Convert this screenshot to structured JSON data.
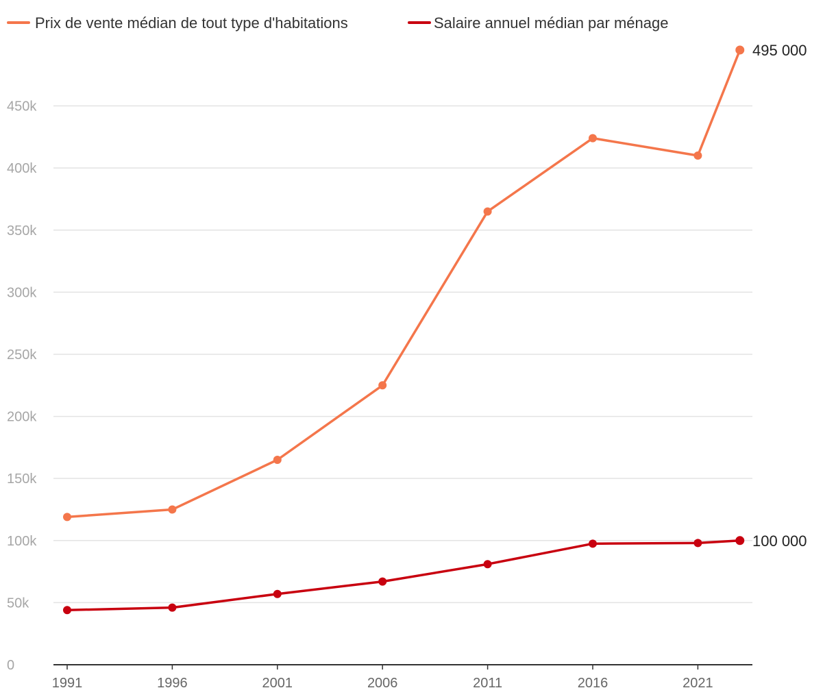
{
  "chart_data": {
    "type": "line",
    "title": "",
    "xlabel": "",
    "ylabel": "",
    "ylim": [
      0,
      495000
    ],
    "grid": true,
    "legend_position": "top-left",
    "x": [
      1991,
      1996,
      2001,
      2006,
      2011,
      2016,
      2021,
      2023
    ],
    "x_tick_labels": [
      "1991",
      "1996",
      "2001",
      "2006",
      "2011",
      "2016",
      "2021"
    ],
    "y_tick_labels": [
      "0",
      "50k",
      "100k",
      "150k",
      "200k",
      "250k",
      "300k",
      "350k",
      "400k",
      "450k"
    ],
    "y_tick_values": [
      0,
      50000,
      100000,
      150000,
      200000,
      250000,
      300000,
      350000,
      400000,
      450000
    ],
    "series": [
      {
        "name": "Prix de vente médian de tout type d'habitations",
        "color": "#f4764b",
        "values": [
          119000,
          125000,
          165000,
          225000,
          365000,
          424000,
          410000,
          495000
        ],
        "end_label": "495 000"
      },
      {
        "name": "Salaire annuel médian par ménage",
        "color": "#c8000f",
        "values": [
          44000,
          46000,
          57000,
          67000,
          81000,
          97500,
          98000,
          100000
        ],
        "end_label": "100 000"
      }
    ]
  }
}
